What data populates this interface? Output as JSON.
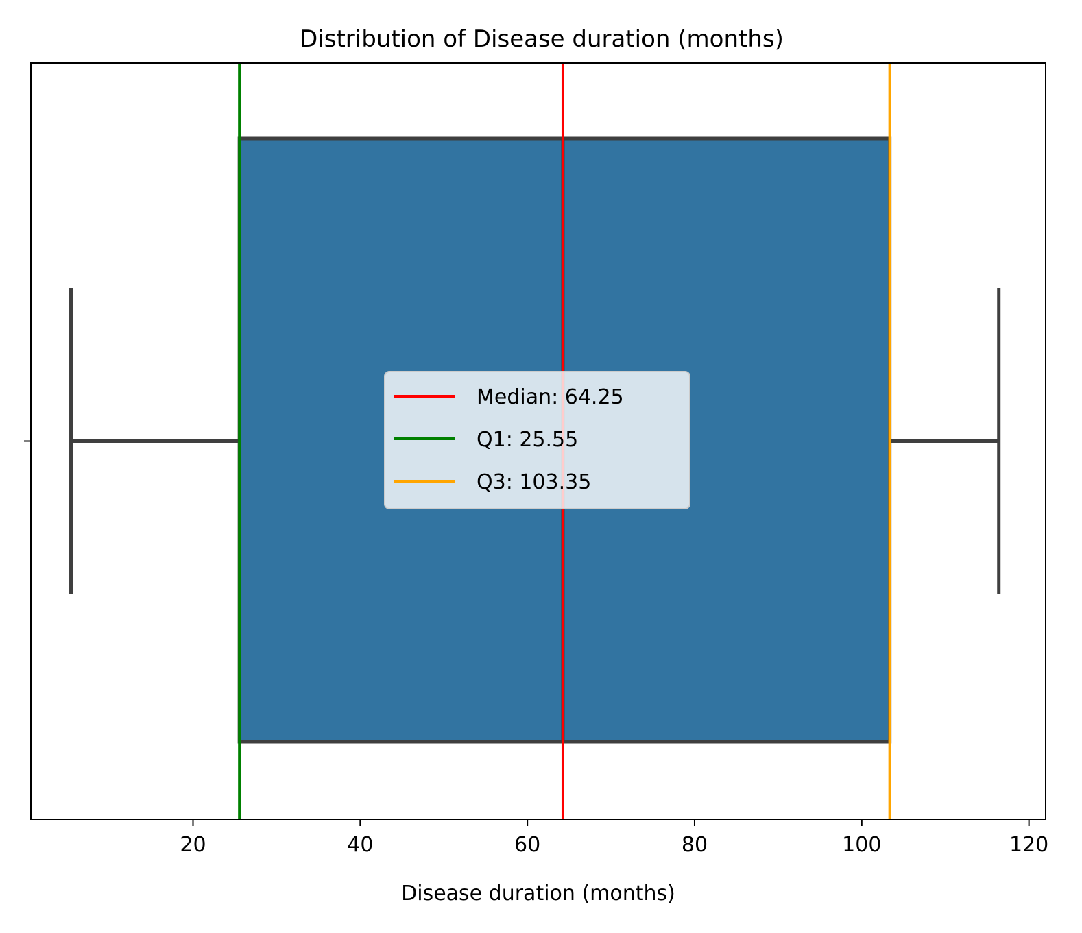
{
  "chart_data": {
    "type": "boxplot",
    "title": "Distribution of Disease duration (months)",
    "xlabel": "Disease duration (months)",
    "ylabel": "",
    "xlim": [
      0.6,
      122.0
    ],
    "xticks": [
      20,
      40,
      60,
      80,
      100,
      120
    ],
    "grid": false,
    "box": {
      "whisker_low": 5.4,
      "q1": 25.55,
      "median": 64.25,
      "q3": 103.35,
      "whisker_high": 116.4,
      "color": "#3274A1",
      "line_color": "#3F3F3F"
    },
    "reference_lines": [
      {
        "label": "Median: 64.25",
        "x": 64.25,
        "color": "#FF0000"
      },
      {
        "label": "Q1: 25.55",
        "x": 25.55,
        "color": "#008000"
      },
      {
        "label": "Q3: 103.35",
        "x": 103.35,
        "color": "#FFA500"
      }
    ],
    "legend_position": "center"
  }
}
